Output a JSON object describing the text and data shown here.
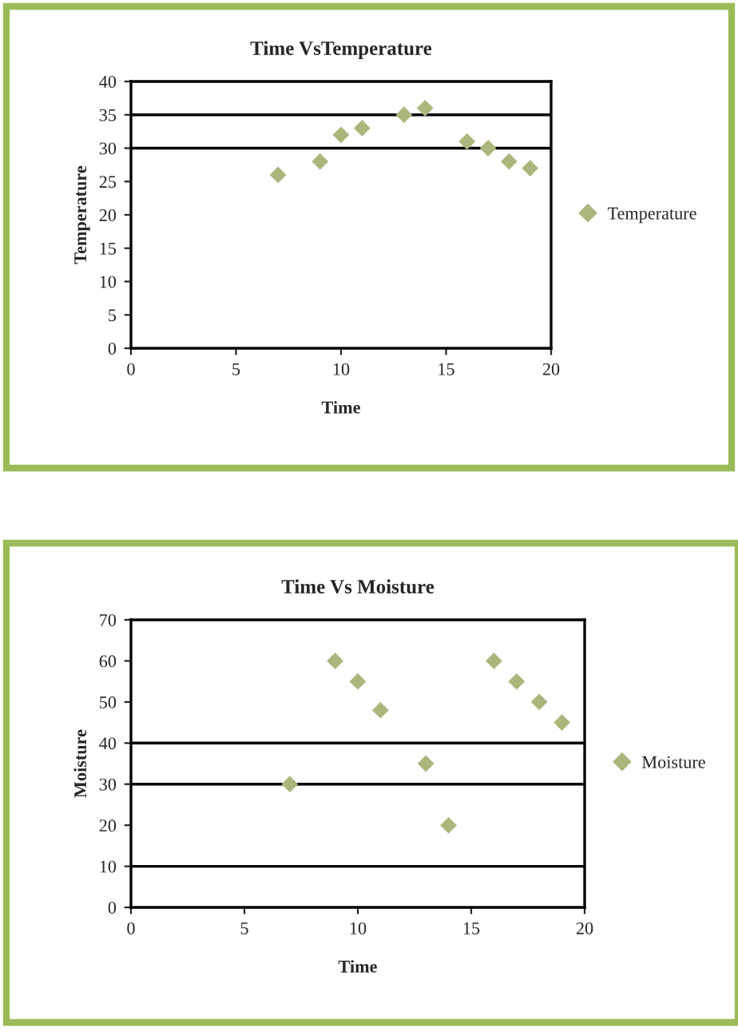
{
  "chart_data": [
    {
      "type": "scatter",
      "title": "Time VsTemperature",
      "xlabel": "Time",
      "ylabel": "Temperature",
      "x": [
        7,
        9,
        10,
        11,
        13,
        14,
        16,
        17,
        18,
        19
      ],
      "series": [
        {
          "name": "Temperature",
          "color": "#a9b77c",
          "values": [
            26,
            28,
            32,
            33,
            35,
            36,
            31,
            30,
            28,
            27
          ]
        }
      ],
      "xlim": [
        0,
        20
      ],
      "xticks": [
        0,
        5,
        10,
        15,
        20
      ],
      "ylim": [
        0,
        40
      ],
      "yticks": [
        0,
        5,
        10,
        15,
        20,
        25,
        30,
        35,
        40
      ],
      "ref_lines": [
        {
          "axis": "y",
          "value": 30,
          "color": "#000000"
        },
        {
          "axis": "y",
          "value": 35,
          "color": "#000000"
        }
      ],
      "marker": "diamond",
      "grid": false,
      "legend": "right"
    },
    {
      "type": "scatter",
      "title": "Time Vs Moisture",
      "xlabel": "Time",
      "ylabel": "Moisture",
      "x": [
        7,
        9,
        10,
        11,
        13,
        14,
        16,
        17,
        18,
        19
      ],
      "series": [
        {
          "name": "Moisture",
          "color": "#a9b77c",
          "values": [
            30,
            60,
            55,
            48,
            35,
            20,
            60,
            55,
            50,
            45
          ]
        }
      ],
      "xlim": [
        0,
        20
      ],
      "xticks": [
        0,
        5,
        10,
        15,
        20
      ],
      "ylim": [
        0,
        70
      ],
      "yticks": [
        0,
        10,
        20,
        30,
        40,
        50,
        60,
        70
      ],
      "ref_lines": [
        {
          "axis": "y",
          "value": 10,
          "color": "#000000"
        },
        {
          "axis": "y",
          "value": 30,
          "color": "#000000"
        },
        {
          "axis": "y",
          "value": 40,
          "color": "#000000"
        }
      ],
      "marker": "diamond",
      "grid": false,
      "legend": "right"
    }
  ]
}
